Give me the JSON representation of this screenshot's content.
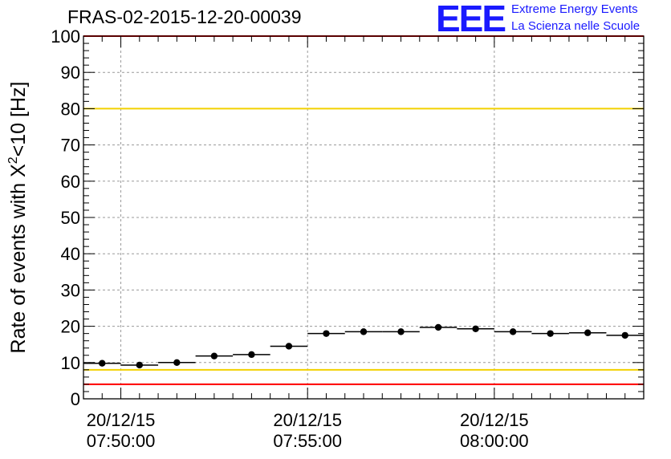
{
  "header": {
    "run_title": "FRAS-02-2015-12-20-00039",
    "logo_text": "EEE",
    "logo_line1": "Extreme Energy Events",
    "logo_line2": "La Scienza nelle Scuole"
  },
  "chart_data": {
    "type": "scatter",
    "title": "FRAS-02-2015-12-20-00039",
    "xlabel": "",
    "ylabel_parts": [
      "Rate of events with X",
      "2",
      "<10 [Hz]"
    ],
    "ylim": [
      0,
      100
    ],
    "yticks": [
      0,
      10,
      20,
      30,
      40,
      50,
      60,
      70,
      80,
      90,
      100
    ],
    "x_unit": "minutes after 07:45:00 (20/12/15)",
    "xlim_minutes": [
      4.0,
      19.0
    ],
    "xtick_labels": [
      {
        "date": "20/12/15",
        "time": "07:50:00",
        "minute": 5
      },
      {
        "date": "20/12/15",
        "time": "07:55:00",
        "minute": 10
      },
      {
        "date": "20/12/15",
        "time": "08:00:00",
        "minute": 15
      }
    ],
    "grid": true,
    "reference_lines": [
      {
        "y": 100,
        "color": "#ff0000"
      },
      {
        "y": 80,
        "color": "#f2d100"
      },
      {
        "y": 8,
        "color": "#f2d100"
      },
      {
        "y": 4,
        "color": "#ff0000"
      }
    ],
    "bin_width_minutes": 1,
    "points": [
      {
        "x": 4.5,
        "y": 9.8
      },
      {
        "x": 5.5,
        "y": 9.3
      },
      {
        "x": 6.5,
        "y": 10.0
      },
      {
        "x": 7.5,
        "y": 11.8
      },
      {
        "x": 8.5,
        "y": 12.2
      },
      {
        "x": 9.5,
        "y": 14.5
      },
      {
        "x": 10.5,
        "y": 18.0
      },
      {
        "x": 11.5,
        "y": 18.5
      },
      {
        "x": 12.5,
        "y": 18.5
      },
      {
        "x": 13.5,
        "y": 19.7
      },
      {
        "x": 14.5,
        "y": 19.3
      },
      {
        "x": 15.5,
        "y": 18.5
      },
      {
        "x": 16.5,
        "y": 18.0
      },
      {
        "x": 17.5,
        "y": 18.2
      },
      {
        "x": 18.5,
        "y": 17.5
      }
    ],
    "colors": {
      "marker": "#000000",
      "grid": "#9a9a9a",
      "axis": "#000000"
    }
  }
}
